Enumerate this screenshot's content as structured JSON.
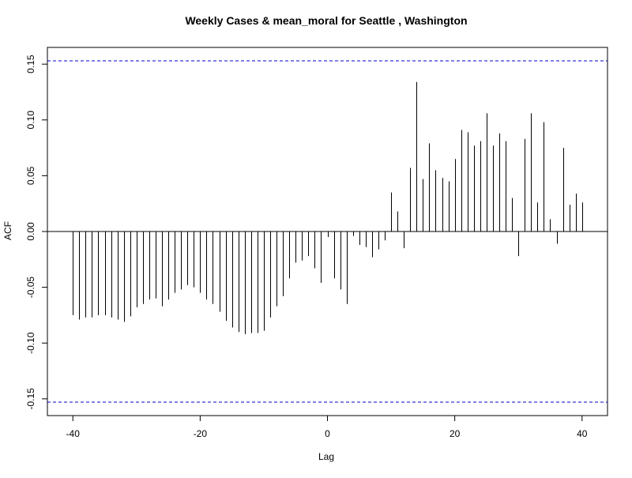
{
  "chart_data": {
    "type": "bar",
    "title": "Weekly Cases & mean_moral for Seattle , Washington",
    "xlabel": "Lag",
    "ylabel": "ACF",
    "xlim": [
      -44,
      44
    ],
    "ylim": [
      -0.165,
      0.165
    ],
    "xticks": [
      -40,
      -20,
      0,
      20,
      40
    ],
    "yticks": [
      -0.15,
      -0.1,
      -0.05,
      0.0,
      0.05,
      0.1,
      0.15
    ],
    "ytick_labels": [
      "-0.15",
      "-0.10",
      "-0.05",
      "0.00",
      "0.05",
      "0.10",
      "0.15"
    ],
    "confidence_bound": 0.153,
    "confidence_color": "#0000cc",
    "bar_color": "#000000",
    "lags": [
      -40,
      -39,
      -38,
      -37,
      -36,
      -35,
      -34,
      -33,
      -32,
      -31,
      -30,
      -29,
      -28,
      -27,
      -26,
      -25,
      -24,
      -23,
      -22,
      -21,
      -20,
      -19,
      -18,
      -17,
      -16,
      -15,
      -14,
      -13,
      -12,
      -11,
      -10,
      -9,
      -8,
      -7,
      -6,
      -5,
      -4,
      -3,
      -2,
      -1,
      0,
      1,
      2,
      3,
      4,
      5,
      6,
      7,
      8,
      9,
      10,
      11,
      12,
      13,
      14,
      15,
      16,
      17,
      18,
      19,
      20,
      21,
      22,
      23,
      24,
      25,
      26,
      27,
      28,
      29,
      30,
      31,
      32,
      33,
      34,
      35,
      36,
      37,
      38,
      39,
      40
    ],
    "values": [
      -0.075,
      -0.079,
      -0.077,
      -0.077,
      -0.075,
      -0.075,
      -0.077,
      -0.079,
      -0.081,
      -0.076,
      -0.068,
      -0.065,
      -0.061,
      -0.06,
      -0.067,
      -0.061,
      -0.055,
      -0.052,
      -0.048,
      -0.05,
      -0.055,
      -0.061,
      -0.065,
      -0.072,
      -0.08,
      -0.086,
      -0.09,
      -0.092,
      -0.091,
      -0.091,
      -0.089,
      -0.077,
      -0.067,
      -0.058,
      -0.042,
      -0.028,
      -0.026,
      -0.022,
      -0.033,
      -0.046,
      -0.005,
      -0.042,
      -0.052,
      -0.065,
      -0.004,
      -0.012,
      -0.014,
      -0.023,
      -0.016,
      -0.008,
      0.035,
      0.018,
      -0.015,
      0.057,
      0.134,
      0.047,
      0.079,
      0.055,
      0.048,
      0.045,
      0.065,
      0.091,
      0.089,
      0.077,
      0.081,
      0.106,
      0.077,
      0.088,
      0.081,
      0.03,
      -0.022,
      0.083,
      0.106,
      0.026,
      0.098,
      0.011,
      -0.011,
      0.075,
      0.024,
      0.034,
      0.026
    ]
  }
}
